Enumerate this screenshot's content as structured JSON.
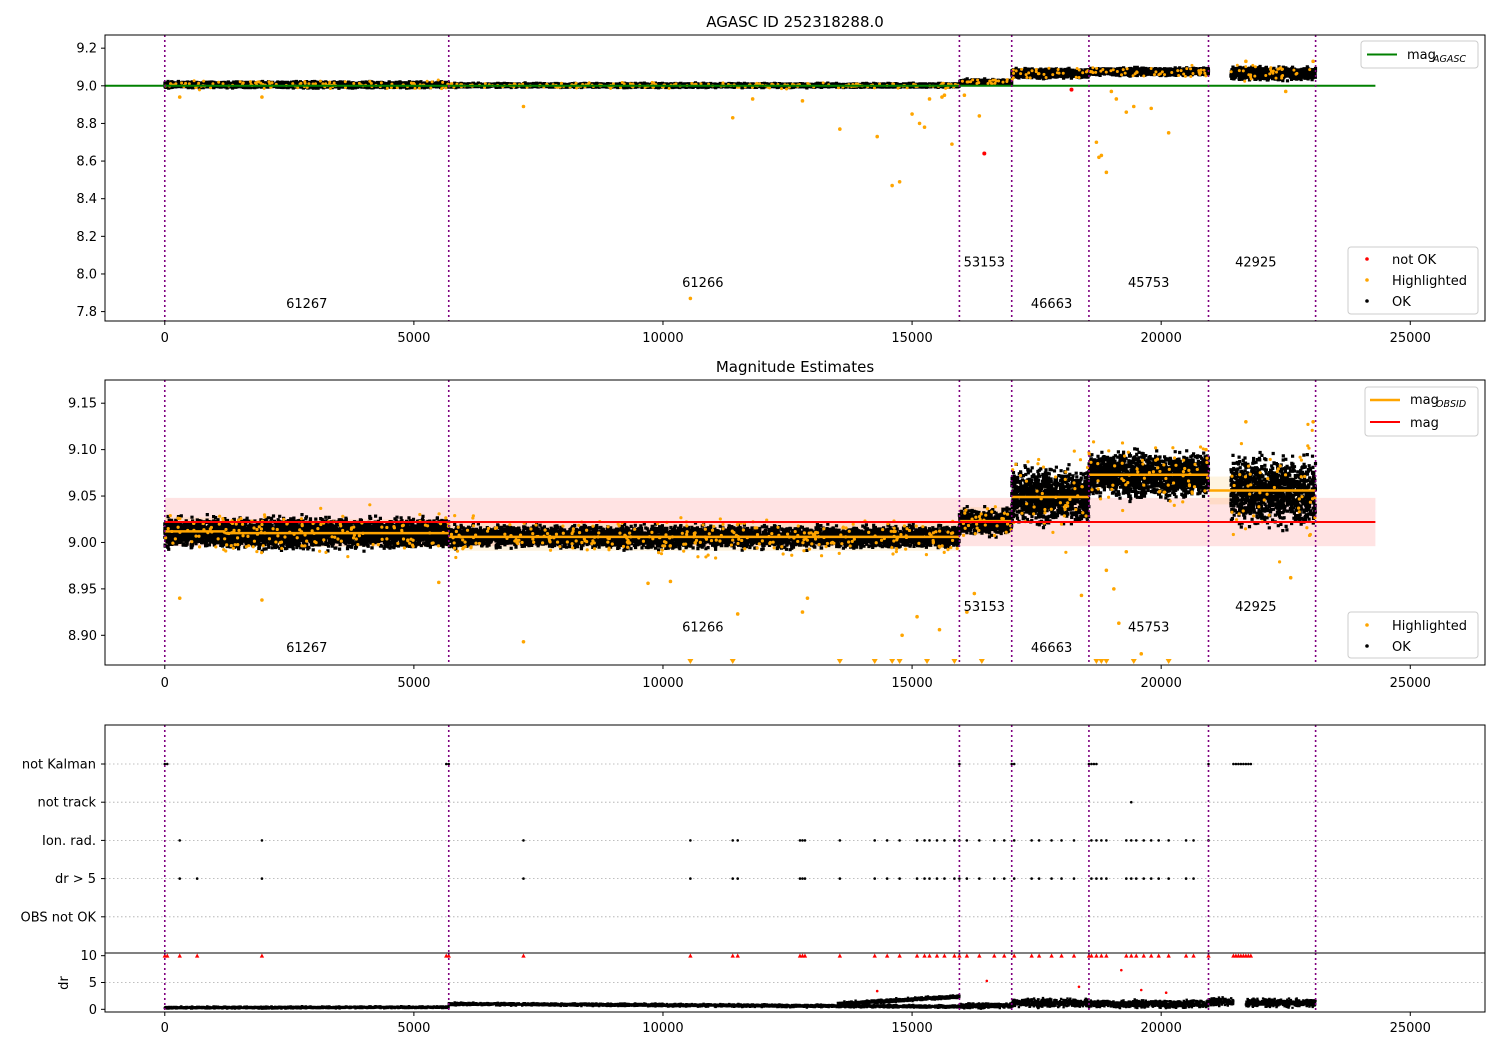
{
  "chart_data": [
    {
      "type": "scatter",
      "title": "AGASC ID 252318288.0",
      "xlim": [
        -1200,
        26500
      ],
      "ylim": [
        7.75,
        9.27
      ],
      "xticks": [
        0,
        5000,
        10000,
        15000,
        20000,
        25000
      ],
      "yticks": [
        7.8,
        8.0,
        8.2,
        8.4,
        8.6,
        8.8,
        9.0,
        9.2
      ],
      "obsid_boundaries": [
        0,
        5700,
        15950,
        17000,
        18550,
        20950,
        23100
      ],
      "obsid_labels": [
        {
          "label": "61267",
          "x": 2850,
          "y": 7.82
        },
        {
          "label": "61266",
          "x": 10800,
          "y": 7.93
        },
        {
          "label": "53153",
          "x": 16450,
          "y": 8.04
        },
        {
          "label": "46663",
          "x": 17800,
          "y": 7.82
        },
        {
          "label": "45753",
          "x": 19750,
          "y": 7.93
        },
        {
          "label": "42925",
          "x": 21900,
          "y": 8.04
        }
      ],
      "reference_line": {
        "name": "mag_AGASC",
        "y": 9.0,
        "x": [
          0,
          24300
        ],
        "color": "#008000"
      },
      "ok_segments": [
        {
          "x": [
            0,
            5700
          ],
          "center": 9.005,
          "spread": 0.012
        },
        {
          "x": [
            5700,
            15950
          ],
          "center": 9.002,
          "spread": 0.008
        },
        {
          "x": [
            15950,
            17000
          ],
          "center": 9.02,
          "spread": 0.01
        },
        {
          "x": [
            17000,
            18550
          ],
          "center": 9.065,
          "spread": 0.018
        },
        {
          "x": [
            18550,
            20950
          ],
          "center": 9.075,
          "spread": 0.015
        },
        {
          "x": [
            21400,
            23100
          ],
          "center": 9.065,
          "spread": 0.025
        }
      ],
      "highlighted_points": [
        [
          300,
          8.94
        ],
        [
          1950,
          8.94
        ],
        [
          7200,
          8.89
        ],
        [
          10550,
          7.87
        ],
        [
          11400,
          8.83
        ],
        [
          11800,
          8.93
        ],
        [
          12800,
          8.92
        ],
        [
          13550,
          8.77
        ],
        [
          14300,
          8.73
        ],
        [
          14600,
          8.47
        ],
        [
          14750,
          8.49
        ],
        [
          15000,
          8.85
        ],
        [
          15150,
          8.8
        ],
        [
          15250,
          8.78
        ],
        [
          15350,
          8.93
        ],
        [
          15600,
          8.94
        ],
        [
          15650,
          8.95
        ],
        [
          15800,
          8.69
        ],
        [
          16050,
          8.95
        ],
        [
          16350,
          8.84
        ],
        [
          18700,
          8.7
        ],
        [
          18750,
          8.62
        ],
        [
          18800,
          8.63
        ],
        [
          18900,
          8.54
        ],
        [
          19000,
          8.97
        ],
        [
          19100,
          8.93
        ],
        [
          19300,
          8.86
        ],
        [
          19450,
          8.89
        ],
        [
          19800,
          8.88
        ],
        [
          20150,
          8.75
        ],
        [
          22500,
          8.97
        ],
        [
          21700,
          9.13
        ],
        [
          23050,
          9.13
        ]
      ],
      "not_ok_points": [
        [
          16450,
          8.64
        ],
        [
          18200,
          8.98
        ]
      ],
      "legend": {
        "top-right": [
          {
            "label": "mag",
            "sub": "AGASC",
            "color": "#008000"
          }
        ],
        "bottom-right": [
          {
            "label": "not OK",
            "color": "#ff0000"
          },
          {
            "label": "Highlighted",
            "color": "#ffa500"
          },
          {
            "label": "OK",
            "color": "#000000"
          }
        ]
      }
    },
    {
      "type": "scatter",
      "title": "Magnitude Estimates",
      "xlim": [
        -1200,
        26500
      ],
      "ylim": [
        8.868,
        9.175
      ],
      "xticks": [
        0,
        5000,
        10000,
        15000,
        20000,
        25000
      ],
      "yticks": [
        8.9,
        8.95,
        9.0,
        9.05,
        9.1,
        9.15
      ],
      "obsid_boundaries": [
        0,
        5700,
        15950,
        17000,
        18550,
        20950,
        23100
      ],
      "obsid_labels": [
        {
          "label": "61267",
          "x": 2850,
          "y": 8.882
        },
        {
          "label": "61266",
          "x": 10800,
          "y": 8.904
        },
        {
          "label": "53153",
          "x": 16450,
          "y": 8.926
        },
        {
          "label": "46663",
          "x": 17800,
          "y": 8.882
        },
        {
          "label": "45753",
          "x": 19750,
          "y": 8.904
        },
        {
          "label": "42925",
          "x": 21900,
          "y": 8.926
        }
      ],
      "mag": {
        "name": "mag",
        "y": 9.022,
        "band": [
          8.996,
          9.048
        ],
        "x": [
          0,
          24300
        ],
        "color": "#ff0000"
      },
      "mag_obsid": [
        {
          "x": [
            0,
            1200
          ],
          "y": 9.012
        },
        {
          "x": [
            1200,
            5700
          ],
          "y": 9.01
        },
        {
          "x": [
            5700,
            15950
          ],
          "y": 9.006
        },
        {
          "x": [
            15950,
            17000
          ],
          "y": 9.023
        },
        {
          "x": [
            17000,
            18550
          ],
          "y": 9.049
        },
        {
          "x": [
            18550,
            20950
          ],
          "y": 9.073
        },
        {
          "x": [
            20950,
            23100
          ],
          "y": 9.056
        }
      ],
      "ok_segments": [
        {
          "x": [
            0,
            5700
          ],
          "center": 9.01,
          "spread": 0.012
        },
        {
          "x": [
            5700,
            15950
          ],
          "center": 9.006,
          "spread": 0.009
        },
        {
          "x": [
            15950,
            17000
          ],
          "center": 9.022,
          "spread": 0.01
        },
        {
          "x": [
            17000,
            18550
          ],
          "center": 9.05,
          "spread": 0.022
        },
        {
          "x": [
            18550,
            20950
          ],
          "center": 9.073,
          "spread": 0.018
        },
        {
          "x": [
            21400,
            23100
          ],
          "center": 9.055,
          "spread": 0.028
        }
      ],
      "highlighted_points": [
        [
          300,
          8.94
        ],
        [
          1950,
          8.938
        ],
        [
          5500,
          8.957
        ],
        [
          7200,
          8.893
        ],
        [
          9700,
          8.956
        ],
        [
          10150,
          8.958
        ],
        [
          11500,
          8.923
        ],
        [
          12800,
          8.925
        ],
        [
          12900,
          8.94
        ],
        [
          14800,
          8.9
        ],
        [
          15100,
          8.92
        ],
        [
          15550,
          8.906
        ],
        [
          16100,
          8.925
        ],
        [
          16250,
          8.945
        ],
        [
          18400,
          8.943
        ],
        [
          18900,
          8.97
        ],
        [
          19050,
          8.95
        ],
        [
          19150,
          8.913
        ],
        [
          19300,
          8.99
        ],
        [
          19600,
          8.88
        ],
        [
          21700,
          9.13
        ],
        [
          22600,
          8.962
        ],
        [
          23050,
          9.13
        ],
        [
          20900,
          9.1
        ]
      ],
      "clipped_low_x": [
        10550,
        11400,
        13550,
        14250,
        14600,
        14750,
        15300,
        15850,
        16400,
        18700,
        18800,
        18900,
        19450,
        20150
      ],
      "legend": {
        "top-right": [
          {
            "label": "mag",
            "sub": "OBSID",
            "color": "#ffa500"
          },
          {
            "label": "mag",
            "sub": "",
            "color": "#ff0000"
          }
        ],
        "bottom-right": [
          {
            "label": "Highlighted",
            "color": "#ffa500"
          },
          {
            "label": "OK",
            "color": "#000000"
          }
        ]
      }
    },
    {
      "type": "scatter",
      "title": "",
      "xlim": [
        -1200,
        26500
      ],
      "categories": [
        "not Kalman",
        "not track",
        "Ion. rad.",
        "dr > 5",
        "OBS not OK"
      ],
      "obsid_boundaries": [
        0,
        5700,
        15950,
        17000,
        18550,
        20950,
        23100
      ],
      "flags": {
        "not Kalman": [
          0,
          50,
          5650,
          5700,
          15950,
          17000,
          17050,
          18550,
          18600,
          18650,
          18700,
          20950,
          21450,
          21500,
          21550,
          21600,
          21650,
          21700,
          21750,
          21800
        ],
        "not track": [
          19400
        ],
        "Ion. rad.": [
          300,
          1950,
          7200,
          10550,
          11400,
          11500,
          12750,
          12800,
          12850,
          13550,
          14250,
          14500,
          14750,
          15100,
          15250,
          15350,
          15500,
          15650,
          15850,
          15950,
          16100,
          16350,
          16650,
          16850,
          17050,
          17400,
          17550,
          17800,
          18000,
          18250,
          18600,
          18700,
          18800,
          18900,
          19300,
          19400,
          19500,
          19650,
          19800,
          19950,
          20150,
          20500,
          20650,
          20950
        ],
        "dr > 5": [
          300,
          650,
          1950,
          7200,
          10550,
          11400,
          11500,
          12750,
          12800,
          12850,
          13550,
          14250,
          14500,
          14750,
          15100,
          15250,
          15350,
          15500,
          15650,
          15850,
          15950,
          16100,
          16350,
          16650,
          16850,
          17050,
          17400,
          17550,
          17800,
          18000,
          18250,
          18600,
          18700,
          18800,
          18900,
          19300,
          19400,
          19500,
          19650,
          19800,
          19950,
          20150,
          20500,
          20650
        ],
        "OBS not OK": []
      }
    },
    {
      "type": "scatter",
      "title": "",
      "ylabel": "dr",
      "xlim": [
        -1200,
        26500
      ],
      "ylim": [
        -0.5,
        10.5
      ],
      "xticks": [
        0,
        5000,
        10000,
        15000,
        20000,
        25000
      ],
      "yticks": [
        0,
        5,
        10
      ],
      "obsid_boundaries": [
        0,
        5700,
        15950,
        17000,
        18550,
        20950,
        23100
      ],
      "dr_segments": [
        {
          "x": [
            0,
            5700
          ],
          "from": 0.3,
          "to": 0.4,
          "spread": 0.15
        },
        {
          "x": [
            5700,
            15950
          ],
          "from": 1.0,
          "to": 0.5,
          "spread": 0.2
        },
        {
          "x": [
            13500,
            15950
          ],
          "from": 1.0,
          "to": 2.4,
          "spread": 0.25
        },
        {
          "x": [
            15950,
            17000
          ],
          "from": 0.6,
          "to": 0.7,
          "spread": 0.35
        },
        {
          "x": [
            17000,
            18550
          ],
          "from": 1.2,
          "to": 1.2,
          "spread": 0.6
        },
        {
          "x": [
            18550,
            20950
          ],
          "from": 1.0,
          "to": 1.0,
          "spread": 0.55
        },
        {
          "x": [
            20950,
            21450
          ],
          "from": 1.4,
          "to": 1.4,
          "spread": 0.6
        },
        {
          "x": [
            21700,
            23100
          ],
          "from": 1.2,
          "to": 1.2,
          "spread": 0.6
        }
      ],
      "red_at_cap_x": [
        0,
        50,
        300,
        650,
        1950,
        5650,
        5700,
        7200,
        10550,
        11400,
        11500,
        12750,
        12800,
        12850,
        13550,
        14250,
        14500,
        14750,
        15100,
        15250,
        15350,
        15500,
        15650,
        15850,
        15950,
        16100,
        16350,
        16650,
        16850,
        17050,
        17400,
        17550,
        17800,
        18000,
        18250,
        18550,
        18600,
        18700,
        18800,
        18900,
        19300,
        19400,
        19500,
        19650,
        19800,
        19950,
        20150,
        20500,
        20650,
        20950,
        21450,
        21500,
        21550,
        21600,
        21650,
        21700,
        21750,
        21800
      ],
      "red_points": [
        [
          14300,
          3.4
        ],
        [
          16500,
          5.3
        ],
        [
          18350,
          4.2
        ],
        [
          19200,
          7.3
        ],
        [
          19600,
          3.6
        ],
        [
          20100,
          3.1
        ]
      ]
    }
  ]
}
